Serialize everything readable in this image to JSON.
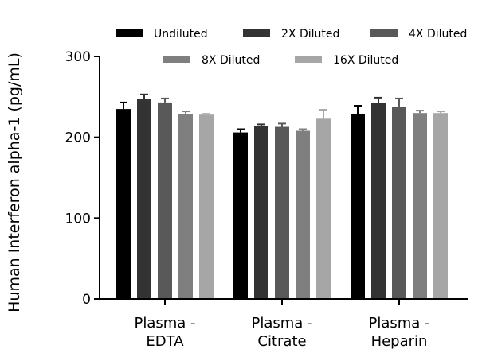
{
  "chart_data": {
    "type": "bar",
    "title": "",
    "xlabel": "",
    "ylabel": "Human Interferon alpha-1 (pg/mL)",
    "ylim": [
      0,
      300
    ],
    "yticks": [
      0,
      100,
      200,
      300
    ],
    "error_bars": true,
    "categories": [
      [
        "Plasma -",
        "EDTA"
      ],
      [
        "Plasma -",
        "Citrate"
      ],
      [
        "Plasma -",
        "Heparin"
      ]
    ],
    "series": [
      {
        "name": "Undiluted",
        "color": "#000000",
        "values": [
          235,
          206,
          229
        ],
        "errors": [
          8,
          4,
          10
        ]
      },
      {
        "name": "2X Diluted",
        "color": "#333333",
        "values": [
          247,
          214,
          242
        ],
        "errors": [
          6,
          2,
          7
        ]
      },
      {
        "name": "4X Diluted",
        "color": "#595959",
        "values": [
          243,
          213,
          238
        ],
        "errors": [
          5,
          4,
          10
        ]
      },
      {
        "name": "8X Diluted",
        "color": "#7f7f7f",
        "values": [
          229,
          208,
          230
        ],
        "errors": [
          3,
          2,
          3
        ]
      },
      {
        "name": "16X Diluted",
        "color": "#a6a6a6",
        "values": [
          228,
          223,
          230
        ],
        "errors": [
          1,
          11,
          2
        ]
      }
    ],
    "legend": {
      "placement": "top"
    }
  }
}
